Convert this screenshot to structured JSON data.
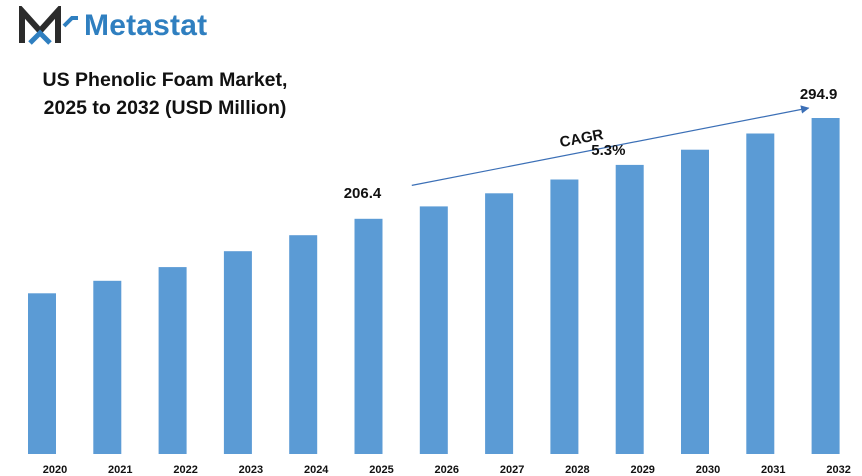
{
  "brand": {
    "name": "Metastat",
    "color": "#2f7fc0",
    "icon": "metastat-m-logo-icon"
  },
  "chart_data": {
    "type": "bar",
    "title_line1": "US Phenolic Foam Market,",
    "title_line2": "2025 to 2032 (USD Million)",
    "categories": [
      "2020",
      "2021",
      "2022",
      "2023",
      "2024",
      "2025",
      "2026",
      "2027",
      "2028",
      "2029",
      "2030",
      "2031",
      "2032"
    ],
    "values": [
      141.0,
      152.0,
      164.0,
      178.0,
      192.0,
      206.4,
      217.3,
      228.8,
      240.9,
      253.7,
      267.1,
      281.3,
      294.9
    ],
    "data_labels": [
      {
        "index": 5,
        "text": "206.4"
      },
      {
        "index": 12,
        "text": "294.9"
      }
    ],
    "annotation": {
      "label": "CAGR",
      "value": "5.3%"
    },
    "bar_color": "#5b9bd5",
    "arrow_color": "#3b6fb6",
    "ylim": [
      0,
      345
    ],
    "grid": false,
    "legend": "none"
  }
}
